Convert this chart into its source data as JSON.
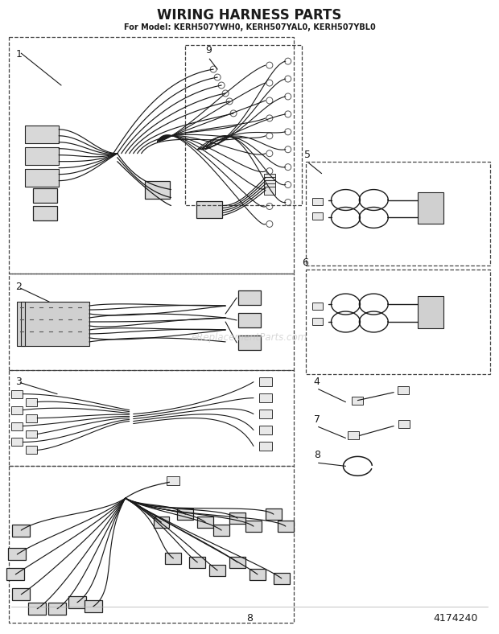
{
  "title": "WIRING HARNESS PARTS",
  "subtitle": "For Model: KERH507YWH0, KERH507YAL0, KERH507YBL0",
  "background_color": "#ffffff",
  "line_color": "#1a1a1a",
  "watermark_text": "eReplacementParts.com",
  "watermark_color": "#c8c8c8",
  "page_number": "8",
  "part_number": "4174240",
  "title_fontsize": 12,
  "subtitle_fontsize": 7,
  "label_fontsize": 9
}
